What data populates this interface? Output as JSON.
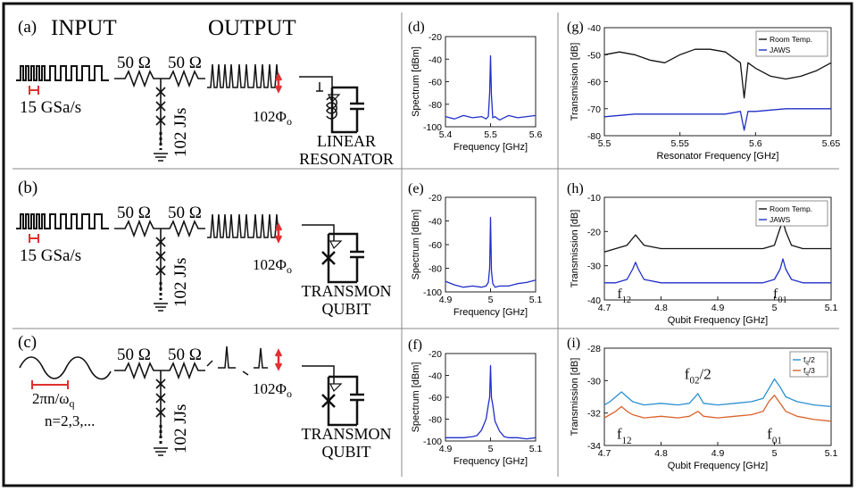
{
  "rows": [
    {
      "panel_label": "(a)",
      "input_title": "INPUT",
      "output_title": "OUTPUT",
      "resistor1": "50 Ω",
      "resistor2": "50 Ω",
      "rate": "15 GSa/s",
      "jj_label": "102 JJs",
      "flux_label": "102Φ",
      "flux_sub": "o",
      "device_line1": "LINEAR",
      "device_line2": "RESONATOR"
    },
    {
      "panel_label": "(b)",
      "resistor1": "50 Ω",
      "resistor2": "50 Ω",
      "rate": "15 GSa/s",
      "jj_label": "102 JJs",
      "flux_label": "102Φ",
      "flux_sub": "o",
      "device_line1": "TRANSMON",
      "device_line2": "QUBIT"
    },
    {
      "panel_label": "(c)",
      "resistor1": "50 Ω",
      "resistor2": "50 Ω",
      "period_label": "2πn/ω",
      "period_sub": "q",
      "n_label": "n=2,3,...",
      "jj_label": "102 JJs",
      "flux_label": "102Φ",
      "flux_sub": "o",
      "device_line1": "TRANSMON",
      "device_line2": "QUBIT"
    }
  ],
  "colors": {
    "signal": "#111111",
    "highlight": "#e03030",
    "blue": "#1f2fc8",
    "light_blue": "#2a8fd0",
    "orange": "#d9622b"
  },
  "chart_data": [
    {
      "id": "d",
      "panel_label": "(d)",
      "type": "line",
      "xlabel": "Frequency [GHz]",
      "ylabel": "Spectrum [dBm]",
      "xlim": [
        5.4,
        5.6
      ],
      "ylim": [
        -100,
        -20
      ],
      "xticks": [
        "5.4",
        "5.5",
        "5.6"
      ],
      "yticks": [
        "-100",
        "-80",
        "-60",
        "-40",
        "-20"
      ],
      "series": [
        {
          "name": "spectrum",
          "color": "#1f2fc8",
          "x": [
            5.4,
            5.42,
            5.44,
            5.46,
            5.48,
            5.49,
            5.495,
            5.498,
            5.5,
            5.502,
            5.505,
            5.51,
            5.52,
            5.54,
            5.56,
            5.58,
            5.6
          ],
          "y": [
            -91,
            -93,
            -90,
            -92,
            -91,
            -93,
            -91,
            -70,
            -37,
            -72,
            -92,
            -91,
            -94,
            -90,
            -92,
            -91,
            -90
          ]
        }
      ]
    },
    {
      "id": "e",
      "panel_label": "(e)",
      "type": "line",
      "xlabel": "Frequency [GHz]",
      "ylabel": "Spectrum [dBm]",
      "xlim": [
        4.9,
        5.1
      ],
      "ylim": [
        -100,
        -20
      ],
      "xticks": [
        "4.9",
        "5",
        "5.1"
      ],
      "yticks": [
        "-100",
        "-80",
        "-60",
        "-40",
        "-20"
      ],
      "series": [
        {
          "name": "spectrum",
          "color": "#1f2fc8",
          "x": [
            4.9,
            4.92,
            4.94,
            4.96,
            4.98,
            4.99,
            4.995,
            4.998,
            5.0,
            5.002,
            5.005,
            5.01,
            5.02,
            5.04,
            5.06,
            5.08,
            5.1
          ],
          "y": [
            -91,
            -94,
            -96,
            -95,
            -96,
            -95,
            -92,
            -80,
            -37,
            -82,
            -93,
            -96,
            -95,
            -95,
            -93,
            -92,
            -90
          ]
        }
      ]
    },
    {
      "id": "f",
      "panel_label": "(f)",
      "type": "line",
      "xlabel": "Frequency [GHz]",
      "ylabel": "Spectrum [dBm]",
      "xlim": [
        4.9,
        5.1
      ],
      "ylim": [
        -100,
        -20
      ],
      "xticks": [
        "4.9",
        "5",
        "5.1"
      ],
      "yticks": [
        "-100",
        "-80",
        "-60",
        "-40",
        "-20"
      ],
      "series": [
        {
          "name": "spectrum",
          "color": "#1f2fc8",
          "x": [
            4.9,
            4.92,
            4.94,
            4.96,
            4.97,
            4.98,
            4.99,
            4.995,
            4.998,
            5.0,
            5.002,
            5.005,
            5.01,
            5.02,
            5.03,
            5.04,
            5.06,
            5.08,
            5.1
          ],
          "y": [
            -97,
            -97,
            -97,
            -96,
            -95,
            -90,
            -80,
            -67,
            -60,
            -31,
            -60,
            -67,
            -82,
            -91,
            -96,
            -97,
            -97,
            -98,
            -97
          ]
        }
      ]
    },
    {
      "id": "g",
      "panel_label": "(g)",
      "type": "line",
      "xlabel": "Resonator Frequency [GHz]",
      "ylabel": "Transmission [dB]",
      "xlim": [
        5.5,
        5.65
      ],
      "ylim": [
        -80,
        -40
      ],
      "xticks": [
        "5.5",
        "5.55",
        "5.6",
        "5.65"
      ],
      "yticks": [
        "-80",
        "-70",
        "-60",
        "-50",
        "-40"
      ],
      "legend": [
        "Room Temp.",
        "JAWS"
      ],
      "series": [
        {
          "name": "Room Temp.",
          "color": "#111111",
          "x": [
            5.5,
            5.51,
            5.52,
            5.53,
            5.54,
            5.55,
            5.56,
            5.57,
            5.58,
            5.585,
            5.59,
            5.5925,
            5.595,
            5.6,
            5.61,
            5.62,
            5.63,
            5.64,
            5.65
          ],
          "y": [
            -50,
            -49,
            -50,
            -52,
            -53,
            -50,
            -48,
            -48,
            -49,
            -51,
            -53,
            -66,
            -53,
            -55,
            -58,
            -59,
            -58,
            -56,
            -53
          ]
        },
        {
          "name": "JAWS",
          "color": "#1f2fc8",
          "x": [
            5.5,
            5.52,
            5.54,
            5.56,
            5.58,
            5.59,
            5.5925,
            5.595,
            5.6,
            5.62,
            5.64,
            5.65
          ],
          "y": [
            -73,
            -72,
            -72,
            -72,
            -72,
            -71,
            -78,
            -71,
            -71,
            -70,
            -70,
            -70
          ]
        }
      ]
    },
    {
      "id": "h",
      "panel_label": "(h)",
      "type": "line",
      "xlabel": "Qubit Frequency [GHz]",
      "ylabel": "Transmission [dB]",
      "xlim": [
        4.7,
        5.1
      ],
      "ylim": [
        -40,
        -10
      ],
      "xticks": [
        "4.7",
        "4.8",
        "4.9",
        "5",
        "5.1"
      ],
      "yticks": [
        "-40",
        "-30",
        "-20",
        "-10"
      ],
      "legend": [
        "Room Temp.",
        "JAWS"
      ],
      "annotations": [
        {
          "text": "f",
          "sub": "12"
        },
        {
          "text": "f",
          "sub": "01"
        }
      ],
      "series": [
        {
          "name": "Room Temp.",
          "color": "#111111",
          "x": [
            4.7,
            4.72,
            4.74,
            4.75,
            4.755,
            4.76,
            4.77,
            4.8,
            4.85,
            4.9,
            4.95,
            4.98,
            5.0,
            5.01,
            5.015,
            5.02,
            5.03,
            5.05,
            5.08,
            5.1
          ],
          "y": [
            -26,
            -25,
            -24,
            -22,
            -21,
            -22,
            -24,
            -25,
            -25,
            -25,
            -25,
            -25,
            -24,
            -19,
            -17,
            -20,
            -24,
            -25,
            -25,
            -25
          ]
        },
        {
          "name": "JAWS",
          "color": "#1f2fc8",
          "x": [
            4.7,
            4.72,
            4.74,
            4.75,
            4.755,
            4.76,
            4.77,
            4.8,
            4.85,
            4.9,
            4.95,
            4.98,
            5.0,
            5.01,
            5.015,
            5.02,
            5.03,
            5.05,
            5.08,
            5.1
          ],
          "y": [
            -35,
            -35,
            -34,
            -31,
            -29,
            -31,
            -34,
            -35,
            -35,
            -35,
            -35,
            -35,
            -34,
            -31,
            -28,
            -31,
            -34,
            -35,
            -35,
            -35
          ]
        }
      ]
    },
    {
      "id": "i",
      "panel_label": "(i)",
      "type": "line",
      "xlabel": "Qubit Frequency [GHz]",
      "ylabel": "Transmission [dB]",
      "xlim": [
        4.7,
        5.1
      ],
      "ylim": [
        -34,
        -28
      ],
      "xticks": [
        "4.7",
        "4.8",
        "4.9",
        "5",
        "5.1"
      ],
      "yticks": [
        "-34",
        "-32",
        "-30",
        "-28"
      ],
      "legend": [
        {
          "text": "f",
          "sub": "q",
          "suffix": "/2"
        },
        {
          "text": "f",
          "sub": "q",
          "suffix": "/3"
        }
      ],
      "annotations": [
        {
          "text": "f",
          "sub": "02",
          "suffix": "/2"
        },
        {
          "text": "f",
          "sub": "12"
        },
        {
          "text": "f",
          "sub": "01"
        }
      ],
      "series": [
        {
          "name": "fq/2",
          "color": "#2a8fd0",
          "x": [
            4.7,
            4.71,
            4.72,
            4.73,
            4.74,
            4.75,
            4.77,
            4.8,
            4.83,
            4.85,
            4.865,
            4.875,
            4.9,
            4.93,
            4.96,
            4.98,
            4.99,
            5.0,
            5.01,
            5.02,
            5.04,
            5.07,
            5.1
          ],
          "y": [
            -31.5,
            -31.3,
            -31.0,
            -30.7,
            -31.0,
            -31.3,
            -31.5,
            -31.4,
            -31.5,
            -31.4,
            -30.8,
            -31.4,
            -31.5,
            -31.4,
            -31.3,
            -31.1,
            -30.5,
            -29.9,
            -30.4,
            -31.0,
            -31.3,
            -31.5,
            -31.6
          ]
        },
        {
          "name": "fq/3",
          "color": "#d9622b",
          "x": [
            4.7,
            4.71,
            4.72,
            4.73,
            4.74,
            4.75,
            4.77,
            4.8,
            4.83,
            4.85,
            4.865,
            4.875,
            4.9,
            4.93,
            4.96,
            4.98,
            4.99,
            5.0,
            5.01,
            5.02,
            5.04,
            5.07,
            5.1
          ],
          "y": [
            -32.3,
            -32.1,
            -31.9,
            -31.6,
            -31.9,
            -32.1,
            -32.3,
            -32.2,
            -32.3,
            -32.2,
            -31.9,
            -32.2,
            -32.3,
            -32.2,
            -32.1,
            -31.9,
            -31.3,
            -30.9,
            -31.4,
            -31.9,
            -32.2,
            -32.4,
            -32.5
          ]
        }
      ]
    }
  ]
}
